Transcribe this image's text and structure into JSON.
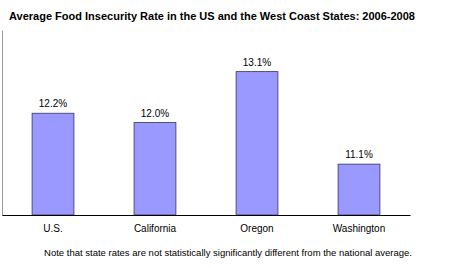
{
  "chart_data": {
    "type": "bar",
    "title": "Average Food Insecurity Rate in the US and the West Coast States: 2006-2008",
    "categories": [
      "U.S.",
      "California",
      "Oregon",
      "Washington"
    ],
    "values": [
      12.2,
      12.0,
      13.1,
      11.1
    ],
    "value_labels": [
      "12.2%",
      "12.0%",
      "13.1%",
      "11.1%"
    ],
    "data_labels": true,
    "color": "#9999ff",
    "ylim": [
      10,
      14
    ],
    "tick_labels": "x",
    "annotations": [
      "Note that state rates are not statistically significantly different from the national average."
    ]
  }
}
